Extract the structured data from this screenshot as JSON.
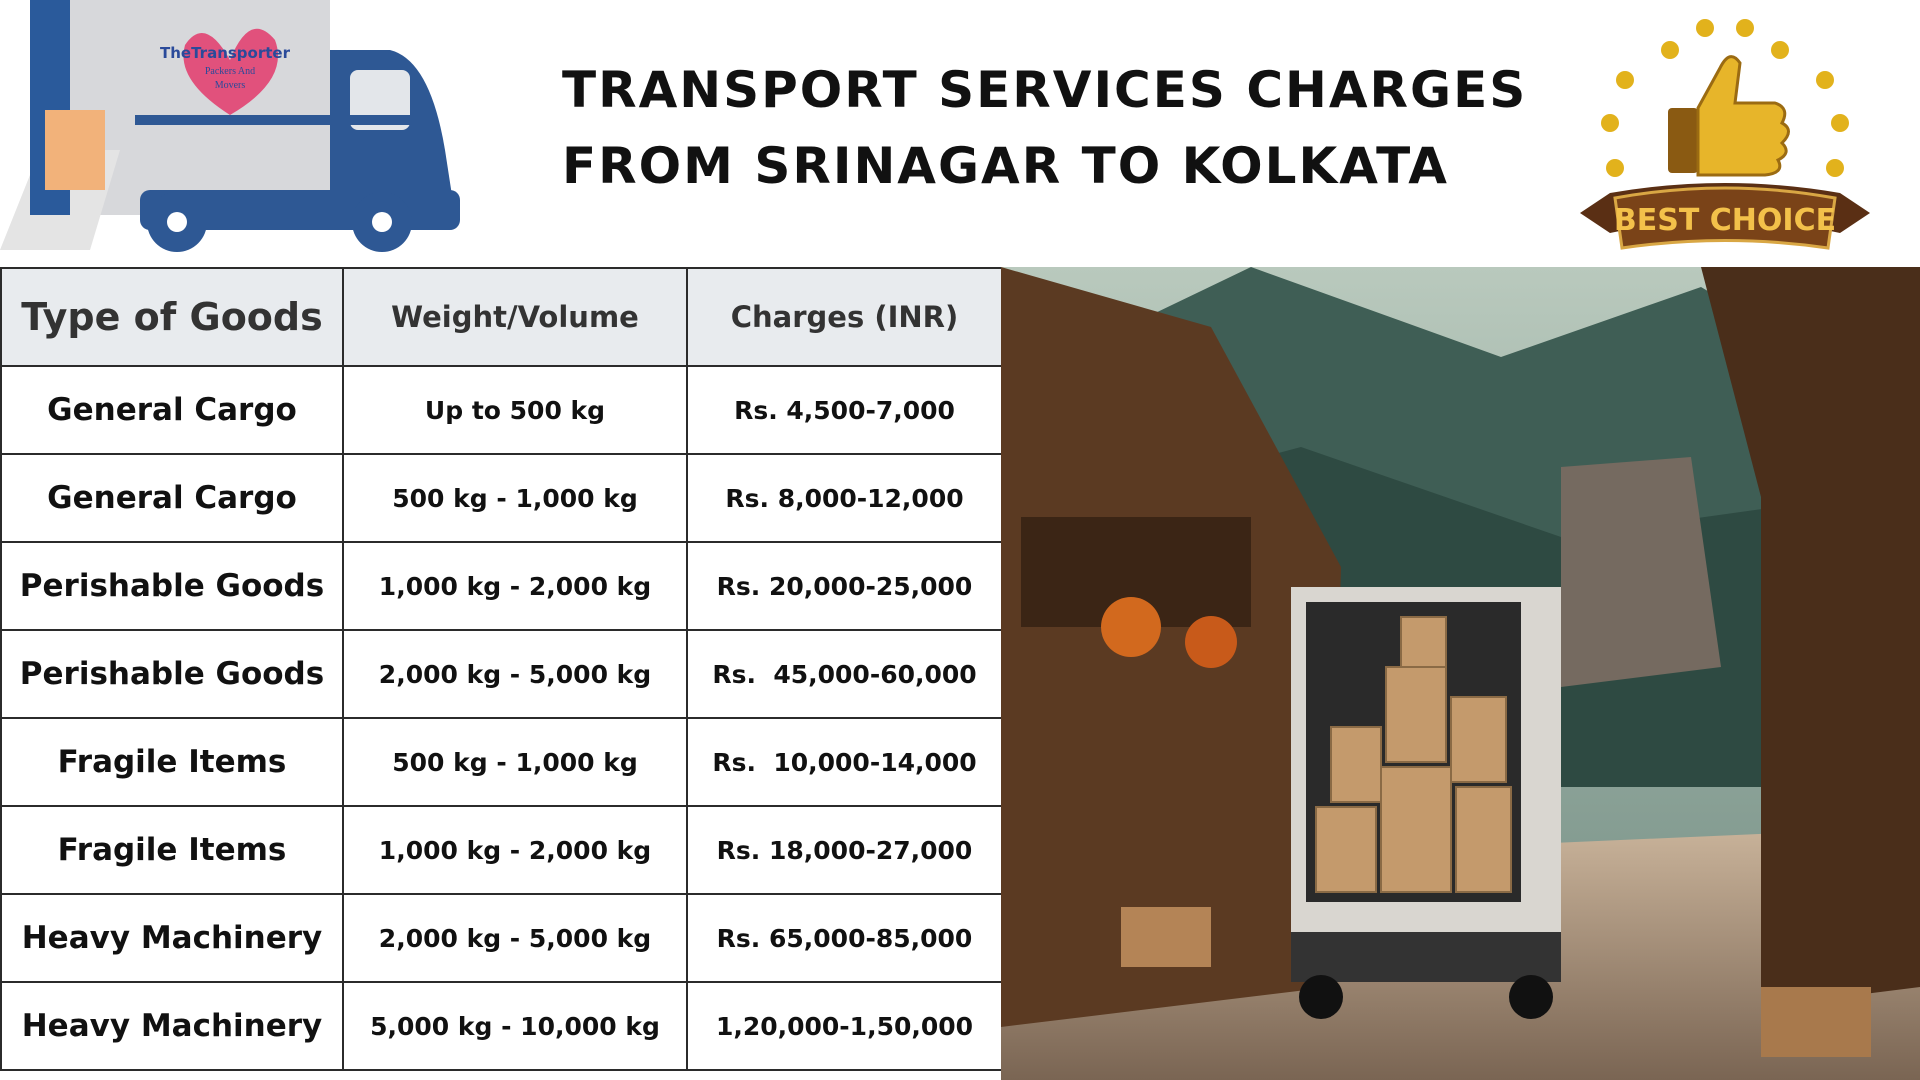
{
  "header": {
    "title_lines": [
      "TRANSPORT SERVICES CHARGES",
      "FROM SRINAGAR TO KOLKATA"
    ],
    "logo_lines": [
      "TheTransporter",
      "Packers And",
      "Movers"
    ],
    "badge": "BEST CHOICE"
  },
  "table": {
    "columns": [
      "Type of Goods",
      "Weight/Volume",
      "Charges (INR)"
    ],
    "rows": [
      [
        "General Cargo",
        "Up to 500 kg",
        "Rs. 4,500-7,000"
      ],
      [
        "General Cargo",
        "500 kg - 1,000 kg",
        "Rs. 8,000-12,000"
      ],
      [
        "Perishable Goods",
        "1,000 kg - 2,000 kg",
        "Rs. 20,000-25,000"
      ],
      [
        "Perishable Goods",
        "2,000 kg - 5,000 kg",
        "Rs.  45,000-60,000"
      ],
      [
        "Fragile Items",
        "500 kg - 1,000 kg",
        "Rs.  10,000-14,000"
      ],
      [
        "Fragile Items",
        "1,000 kg - 2,000 kg",
        "Rs. 18,000-27,000"
      ],
      [
        "Heavy Machinery",
        "2,000 kg - 5,000 kg",
        "Rs. 65,000-85,000"
      ],
      [
        "Heavy Machinery",
        "5,000 kg - 10,000 kg",
        "1,20,000-1,50,000"
      ]
    ]
  }
}
